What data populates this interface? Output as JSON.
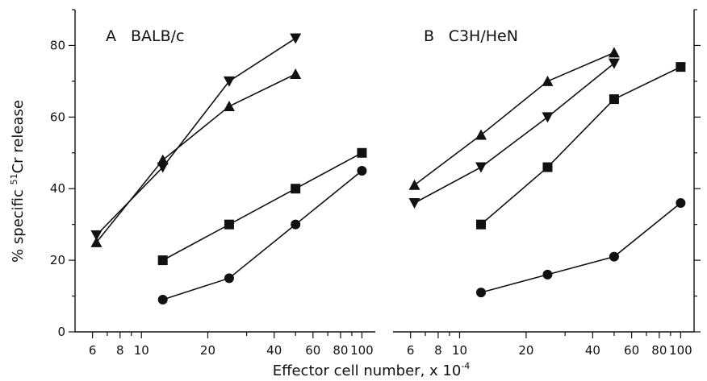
{
  "figure": {
    "ylabel_prefix": "% specific ",
    "ylabel_sup": "51",
    "ylabel_suffix": "Cr release",
    "xlabel_main": "Effector cell number, x 10",
    "xlabel_sup": "-4",
    "colors": {
      "ink": "#111111",
      "background": "#ffffff"
    }
  },
  "chart_data": [
    {
      "type": "line",
      "panel_letter": "A",
      "title": "BALB/c",
      "xlabel": "Effector cell number, x 10-4",
      "ylabel": "% specific 51Cr release",
      "x_scale": "log",
      "xlim": [
        5,
        115
      ],
      "ylim": [
        0,
        90
      ],
      "x_ticks_labeled": [
        6,
        8,
        10,
        20,
        40,
        60,
        80,
        100
      ],
      "x_tick_labels": [
        "6",
        "8",
        "10",
        "20",
        "40",
        "60",
        "80",
        "100"
      ],
      "y_ticks": [
        0,
        20,
        40,
        60,
        80
      ],
      "y_tick_labels": [
        "0",
        "20",
        "40",
        "60",
        "80"
      ],
      "grid": false,
      "series": [
        {
          "marker": "triangle-down",
          "x": [
            6.25,
            12.5,
            25,
            50
          ],
          "y": [
            27,
            46,
            70,
            82
          ]
        },
        {
          "marker": "triangle-up",
          "x": [
            6.25,
            12.5,
            25,
            50
          ],
          "y": [
            25,
            48,
            63,
            72
          ]
        },
        {
          "marker": "square",
          "x": [
            12.5,
            25,
            50,
            100
          ],
          "y": [
            20,
            30,
            40,
            50
          ]
        },
        {
          "marker": "circle",
          "x": [
            12.5,
            25,
            50,
            100
          ],
          "y": [
            9,
            15,
            30,
            45
          ]
        }
      ]
    },
    {
      "type": "line",
      "panel_letter": "B",
      "title": "C3H/HeN",
      "xlabel": "Effector cell number, x 10-4",
      "x_scale": "log",
      "xlim": [
        5,
        115
      ],
      "ylim": [
        0,
        90
      ],
      "x_ticks_labeled": [
        6,
        8,
        10,
        20,
        40,
        60,
        80,
        100
      ],
      "x_tick_labels": [
        "6",
        "8",
        "10",
        "20",
        "40",
        "60",
        "80",
        "100"
      ],
      "y_ticks": [
        0,
        20,
        40,
        60,
        80
      ],
      "grid": false,
      "series": [
        {
          "marker": "triangle-up",
          "x": [
            6.25,
            12.5,
            25,
            50
          ],
          "y": [
            41,
            55,
            70,
            78
          ]
        },
        {
          "marker": "triangle-down",
          "x": [
            6.25,
            12.5,
            25,
            50
          ],
          "y": [
            36,
            46,
            60,
            75
          ]
        },
        {
          "marker": "square",
          "x": [
            12.5,
            25,
            50,
            100
          ],
          "y": [
            30,
            46,
            65,
            74
          ]
        },
        {
          "marker": "circle",
          "x": [
            12.5,
            25,
            50,
            100
          ],
          "y": [
            11,
            16,
            21,
            36
          ]
        }
      ]
    }
  ]
}
